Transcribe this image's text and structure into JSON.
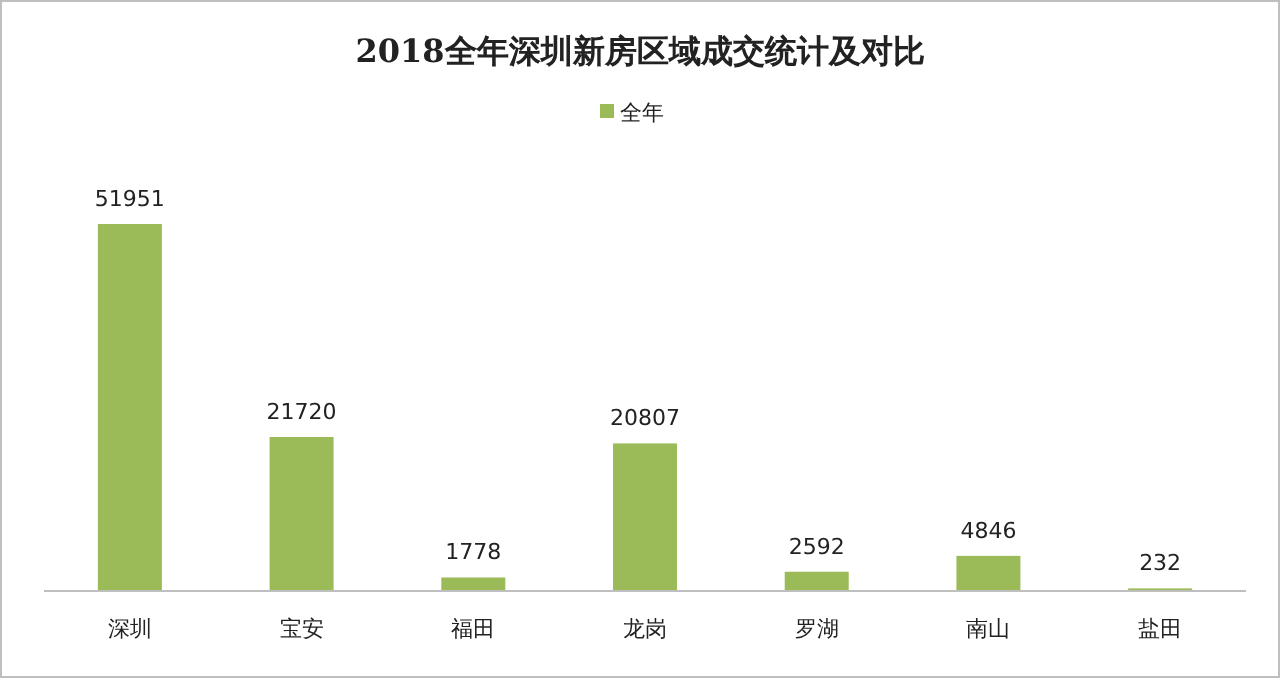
{
  "chart_data": {
    "type": "bar",
    "title": "2018全年深圳新房区域成交统计及对比",
    "categories": [
      "深圳",
      "宝安",
      "福田",
      "龙岗",
      "罗湖",
      "南山",
      "盐田"
    ],
    "series": [
      {
        "name": "全年",
        "color": "#9bbb59",
        "values": [
          51951,
          21720,
          1778,
          20807,
          2592,
          4846,
          232
        ]
      }
    ],
    "data_labels": true,
    "legend": "top"
  }
}
